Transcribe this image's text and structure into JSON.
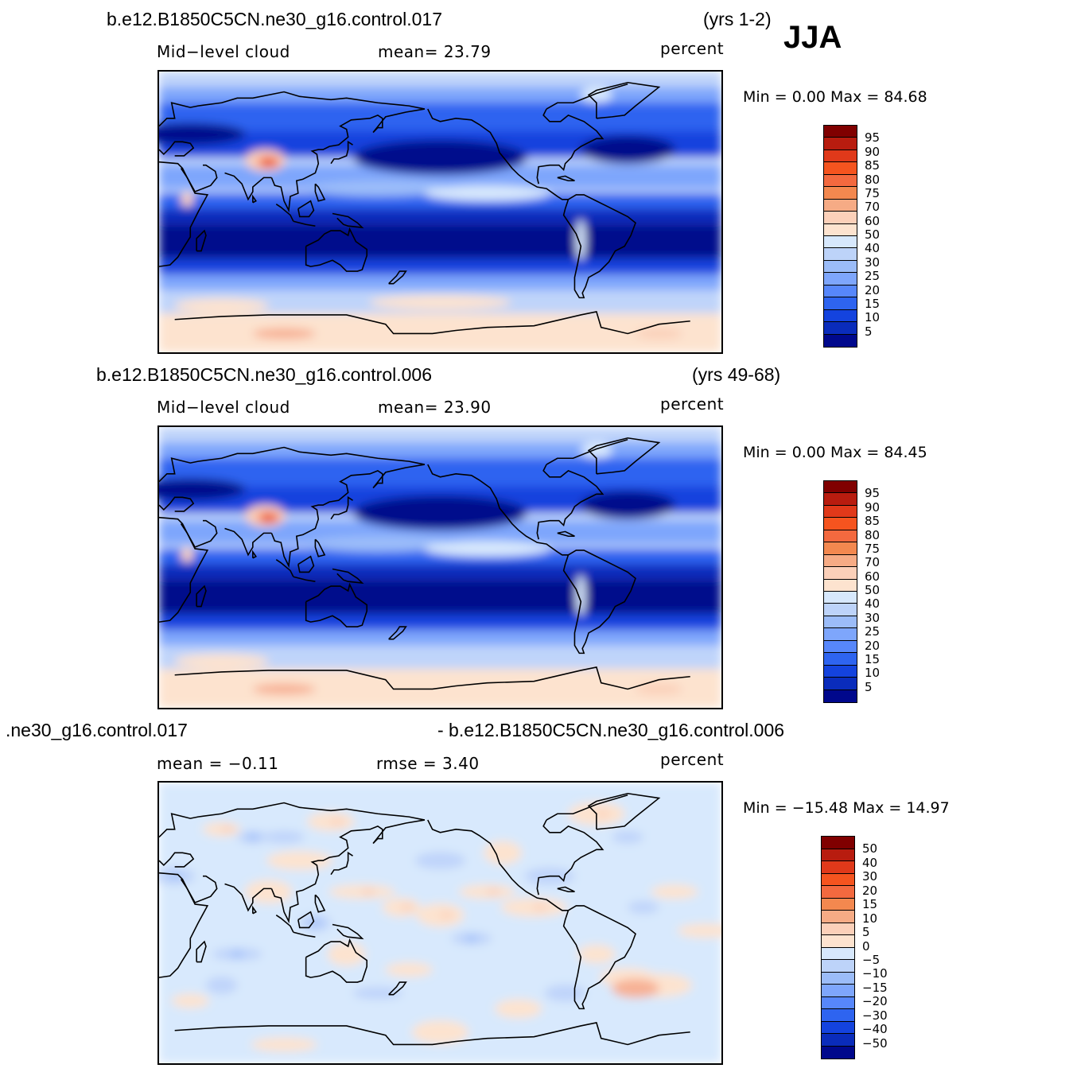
{
  "season": "JJA",
  "panels": [
    {
      "case": "b.e12.B1850C5CN.ne30_g16.control.017",
      "years": "(yrs 1-2)",
      "variable": "Mid−level cloud",
      "stat": "mean=   23.79",
      "units": "percent",
      "minmax": "Min =     0.00  Max =    84.68",
      "colorbar_labels": [
        "95",
        "90",
        "85",
        "80",
        "75",
        "70",
        "60",
        "50",
        "40",
        "30",
        "25",
        "20",
        "15",
        "10",
        "5"
      ]
    },
    {
      "case": "b.e12.B1850C5CN.ne30_g16.control.006",
      "years": "(yrs 49-68)",
      "variable": "Mid−level cloud",
      "stat": "mean=   23.90",
      "units": "percent",
      "minmax": "Min =     0.00  Max =    84.45",
      "colorbar_labels": [
        "95",
        "90",
        "85",
        "80",
        "75",
        "70",
        "60",
        "50",
        "40",
        "30",
        "25",
        "20",
        "15",
        "10",
        "5"
      ]
    },
    {
      "case_left": ".ne30_g16.control.017",
      "case_right": "- b.e12.B1850C5CN.ne30_g16.control.006",
      "variable": "mean =   −0.11",
      "stat": "rmse =     3.40",
      "units": "percent",
      "minmax": "Min = −15.48  Max =    14.97",
      "colorbar_labels": [
        "50",
        "40",
        "30",
        "20",
        "15",
        "10",
        "5",
        "0",
        "−5",
        "−10",
        "−15",
        "−20",
        "−30",
        "−40",
        "−50"
      ]
    }
  ],
  "colors": {
    "scale": [
      "#fde3cf",
      "#fbd0b9",
      "#f7b194",
      "#f28e73",
      "#f3693f",
      "#f05425",
      "#e0391a",
      "#b61b10",
      "#7d0000",
      "#d8e9fd",
      "#bfd4fa",
      "#9cbdf9",
      "#7ea6fc",
      "#5787fb",
      "#2e64f0",
      "#1443de",
      "#0a2cbb",
      "#00088c"
    ],
    "legend_top_to_bottom": [
      "#800000",
      "#b81c0f",
      "#e0391a",
      "#f5541f",
      "#f3693f",
      "#f3884f",
      "#f6ab85",
      "#fbd0b9",
      "#fde3cf",
      "#d7e8fc",
      "#bdd3f9",
      "#9bbcf8",
      "#7ea6fc",
      "#5787fb",
      "#2e64f0",
      "#1443de",
      "#0a2cbb",
      "#00088c"
    ]
  }
}
